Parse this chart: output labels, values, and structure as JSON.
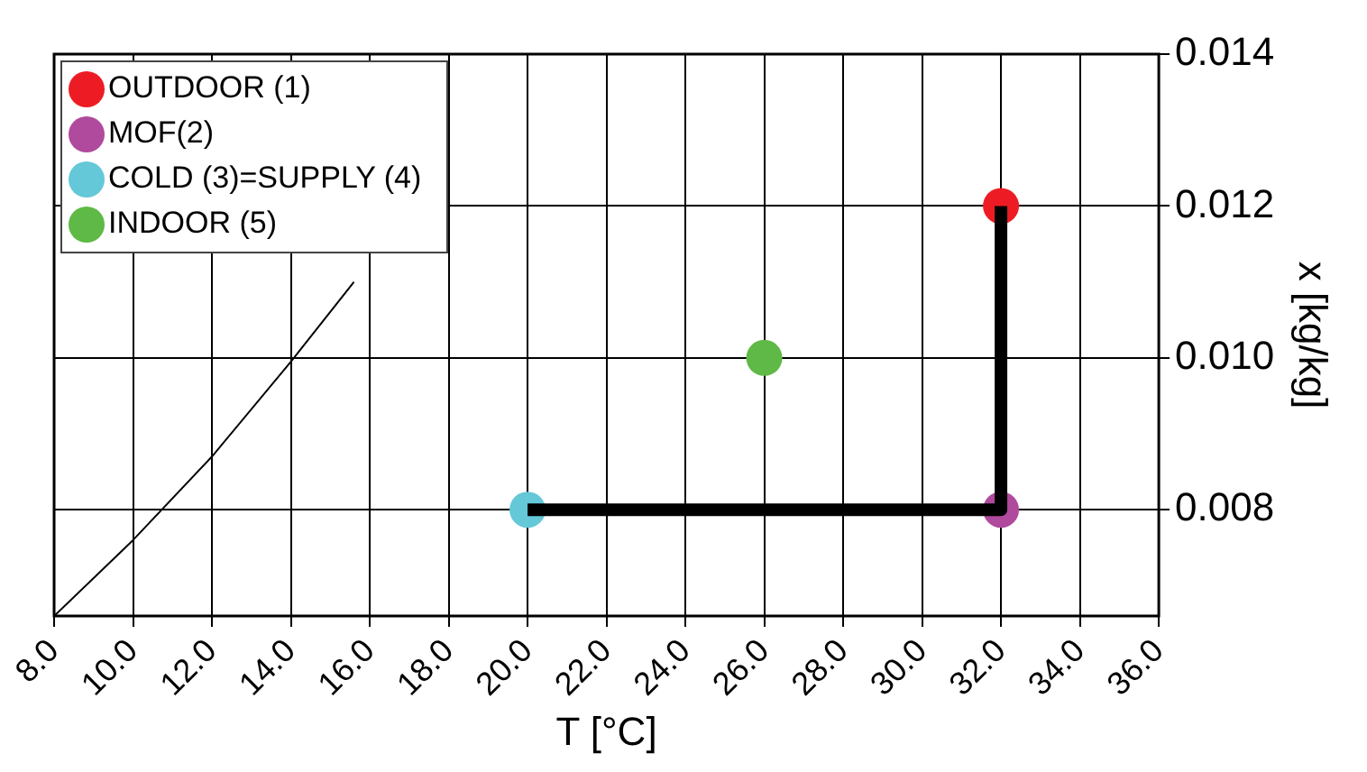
{
  "chart_data": {
    "type": "scatter",
    "xlabel": "T [°C]",
    "ylabel": "x [kg/kg]",
    "xlim": [
      8,
      36
    ],
    "xticks": [
      {
        "value": 8,
        "label": "8.0"
      },
      {
        "value": 10,
        "label": "10.0"
      },
      {
        "value": 12,
        "label": "12.0"
      },
      {
        "value": 14,
        "label": "14.0"
      },
      {
        "value": 16,
        "label": "16.0"
      },
      {
        "value": 18,
        "label": "18.0"
      },
      {
        "value": 20,
        "label": "20.0"
      },
      {
        "value": 22,
        "label": "22.0"
      },
      {
        "value": 24,
        "label": "24.0"
      },
      {
        "value": 26,
        "label": "26.0"
      },
      {
        "value": 28,
        "label": "28.0"
      },
      {
        "value": 30,
        "label": "30.0"
      },
      {
        "value": 32,
        "label": "32.0"
      },
      {
        "value": 34,
        "label": "34.0"
      },
      {
        "value": 36,
        "label": "36.0"
      }
    ],
    "ylim": [
      0.0066,
      0.014
    ],
    "yticks": [
      0.008,
      {
        "value": 0.01,
        "label": "0.010"
      },
      0.012,
      0.014
    ],
    "grid": true,
    "legend": "top left",
    "marker": "circle",
    "series": [
      {
        "type": "line",
        "color": "#000000",
        "x": [
          8,
          10,
          12,
          14,
          15.6
        ],
        "values": [
          0.0066,
          0.0076,
          0.0087,
          0.00995,
          0.011
        ],
        "marker": "none"
      },
      {
        "type": "step",
        "color": "#000000",
        "x": [
          20,
          32
        ],
        "values": [
          0.008,
          0.012
        ],
        "marker": "none"
      },
      {
        "name": "OUTDOOR (1)",
        "color": "#ed1c24",
        "x": [
          32
        ],
        "values": [
          0.012
        ]
      },
      {
        "name": "MOF(2)",
        "color": "#b04a9c",
        "x": [
          32
        ],
        "values": [
          0.008
        ]
      },
      {
        "name": "COLD (3)=SUPPLY (4)",
        "color": "#64c8d8",
        "x": [
          20
        ],
        "values": [
          0.008
        ]
      },
      {
        "name": "INDOOR (5)",
        "color": "#5fb946",
        "x": [
          26
        ],
        "values": [
          0.01
        ]
      }
    ]
  }
}
